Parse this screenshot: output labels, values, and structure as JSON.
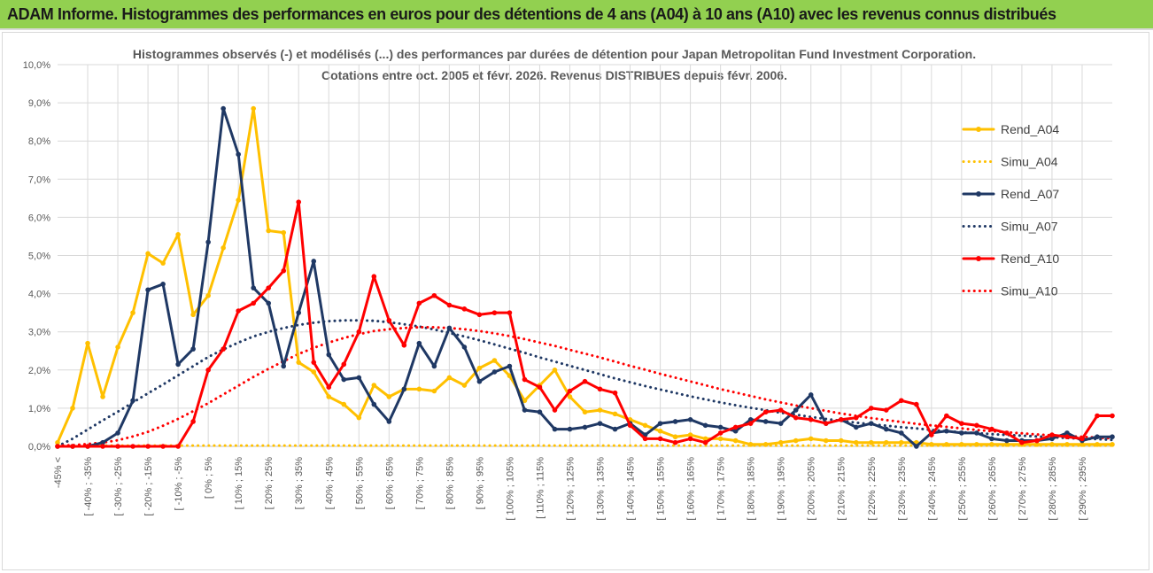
{
  "banner": {
    "title": "ADAM Informe. Histogrammes des performances en euros pour des détentions de 4 ans (A04) à 10 ans (A10) avec les revenus connus distribués",
    "background": "#92d050"
  },
  "chart_data": {
    "type": "line",
    "title_line1": "Histogrammes observés (-) et modélisés (...) des performances par durées de détention pour Japan Metropolitan Fund Investment Corporation.",
    "title_line2": "Cotations entre oct. 2005 et févr. 2026. Revenus DISTRIBUES depuis févr. 2006.",
    "ylim": [
      0,
      10
    ],
    "y_ticks": [
      "0,0%",
      "1,0%",
      "2,0%",
      "3,0%",
      "4,0%",
      "5,0%",
      "6,0%",
      "7,0%",
      "8,0%",
      "9,0%",
      "10,0%"
    ],
    "grid": true,
    "legend_position": "top-right",
    "x_labels": [
      "-45% <",
      "[ -40% ; -35%",
      "[ -30% ; -25%",
      "[ -20% ; -15%",
      "[ -10% ; -5%",
      "[ 0% ; 5%",
      "[ 10% ; 15%",
      "[ 20% ; 25%",
      "[ 30% ; 35%",
      "[ 40% ; 45%",
      "[ 50% ; 55%",
      "[ 60% ; 65%",
      "[ 70% ; 75%",
      "[ 80% ; 85%",
      "[ 90% ; 95%",
      "[ 100% ; 105%",
      "[ 110% ; 115%",
      "[ 120% ; 125%",
      "[ 130% ; 135%",
      "[ 140% ; 145%",
      "[ 150% ; 155%",
      "[ 160% ; 165%",
      "[ 170% ; 175%",
      "[ 180% ; 185%",
      "[ 190% ; 195%",
      "[ 200% ; 205%",
      "[ 210% ; 215%",
      "[ 220% ; 225%",
      "[ 230% ; 235%",
      "[ 240% ; 245%",
      "[ 250% ; 255%",
      "[ 260% ; 265%",
      "[ 270% ; 275%",
      "[ 280% ; 285%",
      "[ 290% ; 295%"
    ],
    "series": [
      {
        "name": "Rend_A04",
        "color": "#ffc000",
        "style": "solid",
        "markers": true,
        "values": [
          0.1,
          1.0,
          2.7,
          1.3,
          2.6,
          3.5,
          5.05,
          4.8,
          5.55,
          3.45,
          3.95,
          5.2,
          6.45,
          8.85,
          5.65,
          5.6,
          2.2,
          1.95,
          1.3,
          1.1,
          0.75,
          1.6,
          1.3,
          1.5,
          1.5,
          1.45,
          1.8,
          1.6,
          2.05,
          2.25,
          1.85,
          1.2,
          1.6,
          2.0,
          1.3,
          0.9,
          0.95,
          0.85,
          0.7,
          0.55,
          0.4,
          0.25,
          0.3,
          0.2,
          0.2,
          0.15,
          0.05,
          0.05,
          0.1,
          0.15,
          0.2,
          0.15,
          0.15,
          0.1,
          0.1,
          0.1,
          0.1,
          0.1,
          0.05,
          0.05,
          0.05,
          0.05,
          0.05,
          0.05,
          0.05,
          0.05,
          0.05,
          0.05,
          0.05,
          0.05,
          0.05
        ]
      },
      {
        "name": "Simu_A04",
        "color": "#ffc000",
        "style": "dotted",
        "markers": false,
        "values": [
          0.02,
          0.02,
          0.02,
          0.02,
          0.02,
          0.02,
          0.02,
          0.02,
          0.02,
          0.02,
          0.02,
          0.02,
          0.02,
          0.02,
          0.02,
          0.02,
          0.02,
          0.02,
          0.02,
          0.02,
          0.02,
          0.02,
          0.02,
          0.02,
          0.02,
          0.02,
          0.02,
          0.02,
          0.02,
          0.02,
          0.02,
          0.02,
          0.02,
          0.02,
          0.02,
          0.02,
          0.02,
          0.02,
          0.02,
          0.02,
          0.02,
          0.02,
          0.02,
          0.02,
          0.02,
          0.02,
          0.02,
          0.02,
          0.02,
          0.02,
          0.02,
          0.02,
          0.02,
          0.02,
          0.02,
          0.02,
          0.02,
          0.02,
          0.02,
          0.02,
          0.02,
          0.02,
          0.02,
          0.02,
          0.02,
          0.02,
          0.02,
          0.02,
          0.02,
          0.02,
          0.02
        ]
      },
      {
        "name": "Rend_A07",
        "color": "#1f3864",
        "style": "solid",
        "markers": true,
        "values": [
          0.0,
          0.0,
          0.0,
          0.1,
          0.35,
          1.2,
          4.1,
          4.25,
          2.15,
          2.55,
          5.35,
          8.85,
          7.65,
          4.15,
          3.75,
          2.1,
          3.5,
          4.85,
          2.4,
          1.75,
          1.8,
          1.1,
          0.65,
          1.5,
          2.7,
          2.1,
          3.1,
          2.6,
          1.7,
          1.95,
          2.1,
          0.95,
          0.9,
          0.45,
          0.45,
          0.5,
          0.6,
          0.45,
          0.6,
          0.3,
          0.6,
          0.65,
          0.7,
          0.55,
          0.5,
          0.4,
          0.7,
          0.65,
          0.6,
          0.95,
          1.35,
          0.6,
          0.7,
          0.5,
          0.6,
          0.45,
          0.35,
          0.0,
          0.35,
          0.4,
          0.35,
          0.35,
          0.2,
          0.15,
          0.15,
          0.15,
          0.2,
          0.35,
          0.15,
          0.25,
          0.25
        ]
      },
      {
        "name": "Simu_A07",
        "color": "#1f3864",
        "style": "dotted",
        "markers": false,
        "values": [
          0.0,
          0.2,
          0.44,
          0.68,
          0.91,
          1.15,
          1.39,
          1.62,
          1.86,
          2.1,
          2.34,
          2.54,
          2.72,
          2.88,
          3.0,
          3.1,
          3.18,
          3.24,
          3.28,
          3.3,
          3.3,
          3.29,
          3.25,
          3.2,
          3.14,
          3.06,
          2.97,
          2.88,
          2.78,
          2.67,
          2.56,
          2.45,
          2.33,
          2.22,
          2.11,
          2.0,
          1.89,
          1.78,
          1.68,
          1.58,
          1.49,
          1.4,
          1.31,
          1.23,
          1.15,
          1.08,
          1.01,
          0.95,
          0.88,
          0.83,
          0.77,
          0.72,
          0.67,
          0.62,
          0.58,
          0.54,
          0.5,
          0.47,
          0.43,
          0.4,
          0.37,
          0.35,
          0.32,
          0.3,
          0.28,
          0.26,
          0.24,
          0.22,
          0.2,
          0.19,
          0.17
        ]
      },
      {
        "name": "Rend_A10",
        "color": "#ff0000",
        "style": "solid",
        "markers": true,
        "values": [
          0.0,
          0.0,
          0.0,
          0.0,
          0.0,
          0.0,
          0.0,
          0.0,
          0.0,
          0.65,
          2.0,
          2.55,
          3.55,
          3.75,
          4.15,
          4.6,
          6.4,
          2.2,
          1.55,
          2.15,
          3.0,
          4.45,
          3.3,
          2.65,
          3.75,
          3.95,
          3.7,
          3.6,
          3.45,
          3.5,
          3.5,
          1.75,
          1.55,
          0.95,
          1.45,
          1.7,
          1.5,
          1.4,
          0.55,
          0.2,
          0.2,
          0.1,
          0.2,
          0.1,
          0.35,
          0.5,
          0.6,
          0.9,
          0.95,
          0.75,
          0.7,
          0.6,
          0.7,
          0.75,
          1.0,
          0.95,
          1.2,
          1.1,
          0.3,
          0.8,
          0.6,
          0.55,
          0.45,
          0.35,
          0.1,
          0.15,
          0.3,
          0.25,
          0.2,
          0.8,
          0.8
        ]
      },
      {
        "name": "Simu_A10",
        "color": "#ff0000",
        "style": "dotted",
        "markers": false,
        "values": [
          0.02,
          0.03,
          0.06,
          0.1,
          0.16,
          0.26,
          0.38,
          0.54,
          0.72,
          0.92,
          1.13,
          1.36,
          1.59,
          1.82,
          2.03,
          2.23,
          2.42,
          2.58,
          2.72,
          2.84,
          2.94,
          3.02,
          3.07,
          3.1,
          3.12,
          3.12,
          3.1,
          3.07,
          3.02,
          2.96,
          2.89,
          2.81,
          2.72,
          2.63,
          2.53,
          2.43,
          2.33,
          2.22,
          2.11,
          2.01,
          1.9,
          1.8,
          1.7,
          1.6,
          1.5,
          1.41,
          1.32,
          1.23,
          1.15,
          1.07,
          1.0,
          0.93,
          0.86,
          0.8,
          0.74,
          0.69,
          0.64,
          0.59,
          0.55,
          0.51,
          0.47,
          0.43,
          0.4,
          0.37,
          0.34,
          0.31,
          0.29,
          0.27,
          0.25,
          0.23,
          0.21
        ]
      }
    ]
  }
}
